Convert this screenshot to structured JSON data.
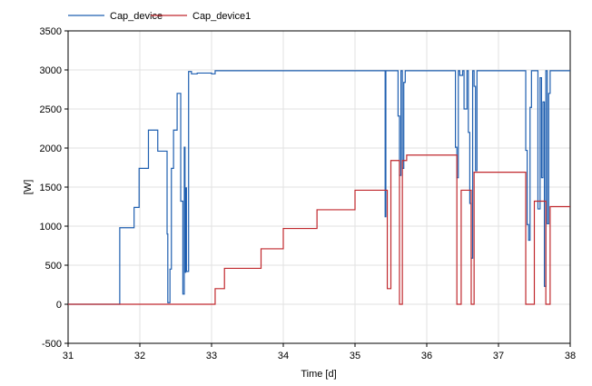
{
  "chart_data": {
    "type": "line",
    "title": "",
    "xlabel": "Time [d]",
    "ylabel": "[W]",
    "xlim": [
      31,
      38
    ],
    "ylim": [
      -500,
      3500
    ],
    "x_ticks": [
      31,
      32,
      33,
      34,
      35,
      36,
      37,
      38
    ],
    "y_ticks": [
      -500,
      0,
      500,
      1000,
      1500,
      2000,
      2500,
      3000,
      3500
    ],
    "grid": true,
    "legend_position": "top-left",
    "series": [
      {
        "name": "Cap_device",
        "color": "#1f5fb0",
        "step": true,
        "x": [
          31.0,
          31.72,
          31.92,
          31.99,
          32.12,
          32.25,
          32.38,
          32.39,
          32.42,
          32.44,
          32.47,
          32.52,
          32.57,
          32.6,
          32.62,
          32.63,
          32.64,
          32.65,
          32.68,
          32.72,
          32.8,
          33.0,
          33.05,
          33.2,
          34.0,
          35.0,
          35.42,
          35.43,
          35.44,
          35.46,
          35.6,
          35.62,
          35.64,
          35.66,
          35.68,
          35.7,
          35.72,
          35.8,
          36.0,
          36.4,
          36.42,
          36.44,
          36.46,
          36.5,
          36.52,
          36.56,
          36.58,
          36.6,
          36.62,
          36.64,
          36.66,
          36.68,
          36.7,
          36.72,
          37.0,
          37.38,
          37.4,
          37.42,
          37.44,
          37.46,
          37.5,
          37.55,
          37.58,
          37.6,
          37.62,
          37.64,
          37.66,
          37.68,
          37.7,
          37.72,
          37.74,
          38.0
        ],
        "values": [
          0,
          980,
          1240,
          1740,
          2230,
          1960,
          900,
          20,
          450,
          1740,
          2230,
          2700,
          1320,
          130,
          2010,
          410,
          1490,
          420,
          2980,
          2950,
          2960,
          2950,
          2990,
          2990,
          2990,
          2990,
          1120,
          2990,
          2990,
          2990,
          2410,
          1650,
          2990,
          1740,
          2840,
          2990,
          2990,
          2990,
          2990,
          2010,
          1620,
          2990,
          2930,
          2990,
          2500,
          2990,
          2200,
          1290,
          590,
          2990,
          2790,
          1710,
          2990,
          2990,
          2990,
          1970,
          1020,
          820,
          2520,
          2990,
          2990,
          1220,
          2900,
          1620,
          2590,
          230,
          2990,
          1030,
          2700,
          2990,
          2990,
          2990
        ]
      },
      {
        "name": "Cap_device1",
        "color": "#c0282d",
        "step": true,
        "x": [
          31.0,
          33.05,
          33.18,
          33.69,
          34.0,
          34.47,
          35.0,
          35.45,
          35.5,
          35.55,
          35.62,
          35.66,
          35.72,
          36.0,
          36.42,
          36.48,
          36.56,
          36.62,
          36.66,
          36.72,
          37.38,
          37.5,
          37.55,
          37.66,
          37.72,
          38.0
        ],
        "values": [
          0,
          200,
          460,
          710,
          970,
          1210,
          1460,
          200,
          1840,
          1840,
          0,
          1840,
          1910,
          1910,
          0,
          1460,
          1460,
          0,
          1690,
          1690,
          0,
          1320,
          1320,
          0,
          1250,
          1250
        ]
      }
    ]
  }
}
